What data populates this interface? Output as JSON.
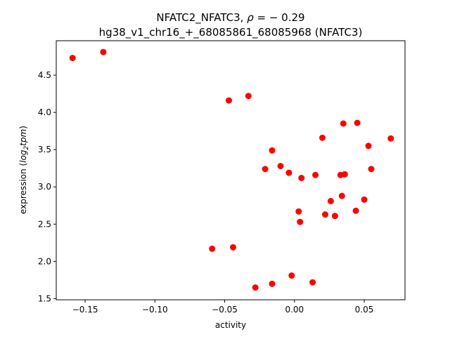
{
  "chart_data": {
    "type": "scatter",
    "title_line1_prefix": "NFATC2_NFATC3, ",
    "title_rho_symbol": "ρ",
    "title_rho_value": " = − 0.29",
    "title_line2": "hg38_v1_chr16_+_68085861_68085968 (NFATC3)",
    "xlabel": "activity",
    "ylabel_prefix": "expression (",
    "ylabel_log": "log",
    "ylabel_sub": "2",
    "ylabel_tpm": "tpm",
    "ylabel_suffix": ")",
    "xlim": [
      -0.1707,
      0.0792
    ],
    "ylim": [
      1.485,
      4.962
    ],
    "xticks": [
      {
        "value": -0.15,
        "label": "−0.15"
      },
      {
        "value": -0.1,
        "label": "−0.10"
      },
      {
        "value": -0.05,
        "label": "−0.05"
      },
      {
        "value": 0.0,
        "label": "0.00"
      },
      {
        "value": 0.05,
        "label": "0.05"
      }
    ],
    "yticks": [
      {
        "value": 1.5,
        "label": "1.5"
      },
      {
        "value": 2.0,
        "label": "2.0"
      },
      {
        "value": 2.5,
        "label": "2.5"
      },
      {
        "value": 3.0,
        "label": "3.0"
      },
      {
        "value": 3.5,
        "label": "3.5"
      },
      {
        "value": 4.0,
        "label": "4.0"
      },
      {
        "value": 4.5,
        "label": "4.5"
      }
    ],
    "grid": false,
    "marker_color": "#ff0000",
    "points": [
      {
        "x": -0.159,
        "y": 4.73
      },
      {
        "x": -0.137,
        "y": 4.81
      },
      {
        "x": -0.047,
        "y": 4.16
      },
      {
        "x": -0.033,
        "y": 4.22
      },
      {
        "x": -0.059,
        "y": 2.17
      },
      {
        "x": -0.044,
        "y": 2.19
      },
      {
        "x": -0.028,
        "y": 1.65
      },
      {
        "x": -0.016,
        "y": 1.7
      },
      {
        "x": -0.002,
        "y": 1.81
      },
      {
        "x": 0.013,
        "y": 1.72
      },
      {
        "x": -0.021,
        "y": 3.24
      },
      {
        "x": -0.016,
        "y": 3.49
      },
      {
        "x": -0.01,
        "y": 3.28
      },
      {
        "x": -0.004,
        "y": 3.19
      },
      {
        "x": 0.005,
        "y": 3.12
      },
      {
        "x": 0.015,
        "y": 3.16
      },
      {
        "x": 0.02,
        "y": 3.66
      },
      {
        "x": 0.003,
        "y": 2.67
      },
      {
        "x": 0.004,
        "y": 2.53
      },
      {
        "x": 0.022,
        "y": 2.63
      },
      {
        "x": 0.026,
        "y": 2.81
      },
      {
        "x": 0.029,
        "y": 2.61
      },
      {
        "x": 0.033,
        "y": 3.16
      },
      {
        "x": 0.036,
        "y": 3.17
      },
      {
        "x": 0.034,
        "y": 2.88
      },
      {
        "x": 0.035,
        "y": 3.85
      },
      {
        "x": 0.045,
        "y": 3.86
      },
      {
        "x": 0.044,
        "y": 2.68
      },
      {
        "x": 0.05,
        "y": 2.83
      },
      {
        "x": 0.053,
        "y": 3.55
      },
      {
        "x": 0.055,
        "y": 3.24
      },
      {
        "x": 0.069,
        "y": 3.65
      }
    ]
  }
}
